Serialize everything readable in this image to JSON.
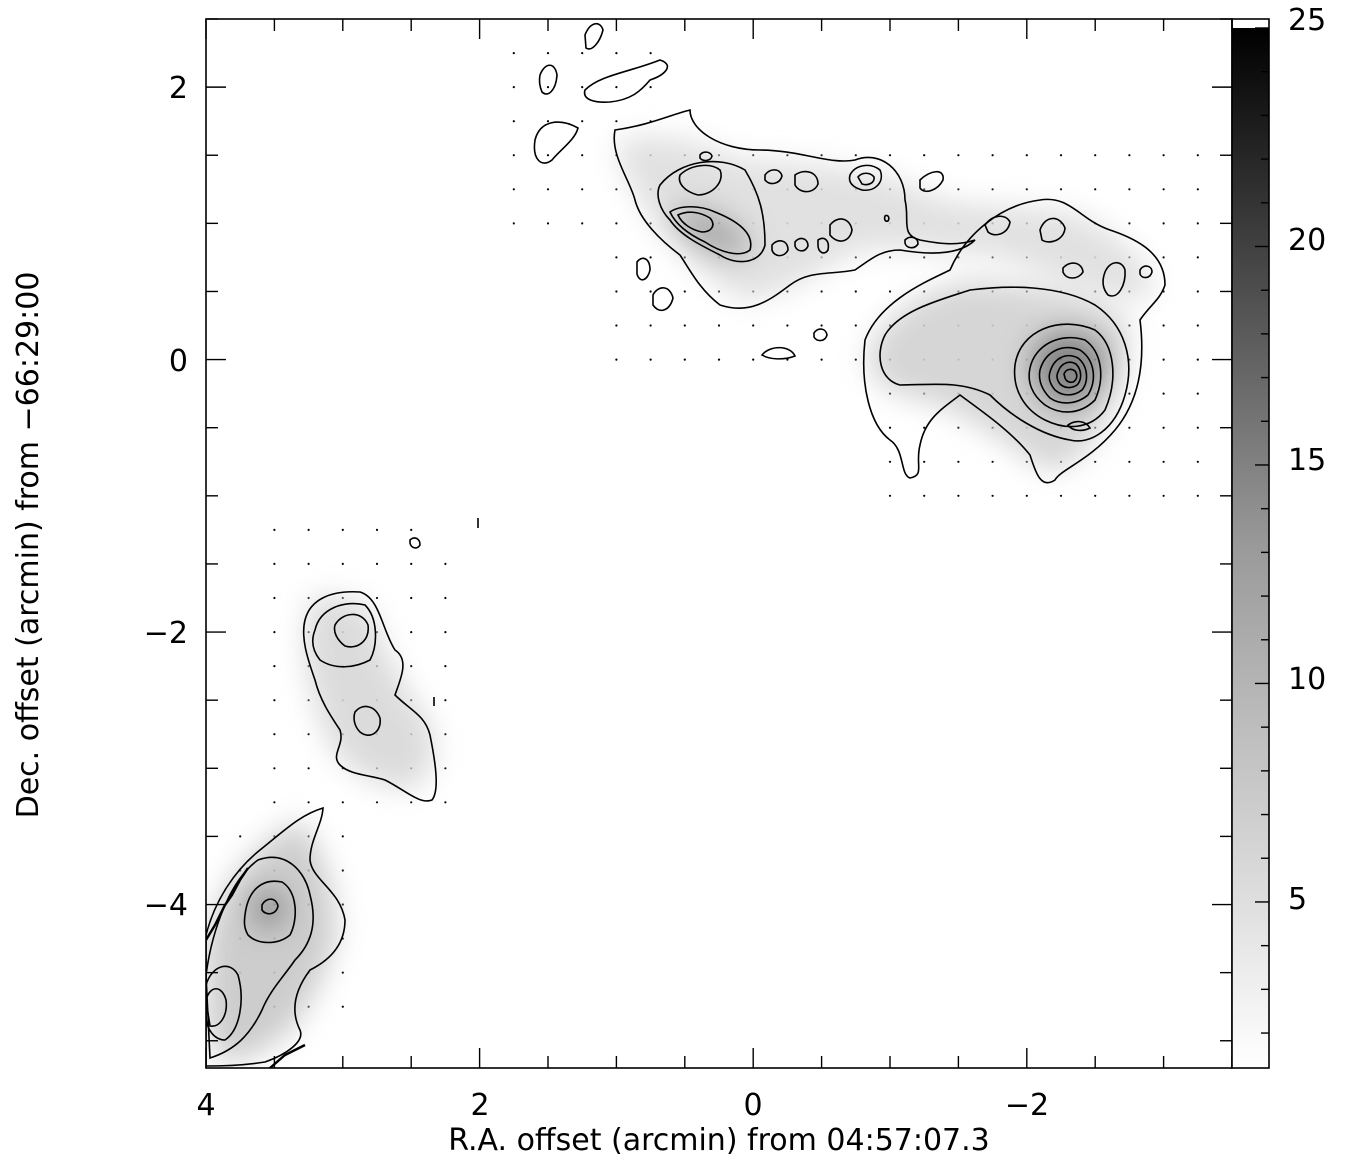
{
  "chart_data": {
    "type": "heatmap",
    "title": "",
    "xlabel": "R.A. offset (arcmin) from 04:57:07.3",
    "ylabel": "Dec. offset (arcmin) from −66:29:00",
    "xlim": [
      4.0,
      -3.5
    ],
    "ylim": [
      -5.2,
      2.5
    ],
    "x_ticks": [
      4,
      2,
      0,
      -2
    ],
    "x_tick_labels": [
      "4",
      "2",
      "0",
      "−2"
    ],
    "y_ticks": [
      2,
      0,
      -2,
      -4
    ],
    "y_tick_labels": [
      "2",
      "0",
      "−2",
      "−4"
    ],
    "colorbar": {
      "min": 1.2,
      "max": 25,
      "ticks": [
        5,
        10,
        15,
        20,
        25
      ],
      "tick_labels": [
        "5",
        "10",
        "15",
        "20",
        "25"
      ],
      "colormap": "grayscale (white low, black high)"
    },
    "contours": "black contour lines at increasing intensity levels",
    "sampling_dots": "small dots mark observed grid positions",
    "emission_peaks": [
      {
        "x": -2.35,
        "y": -0.1,
        "value": 24
      },
      {
        "x": 0.45,
        "y": 1.0,
        "value": 9
      },
      {
        "x": -0.8,
        "y": 1.35,
        "value": 8
      },
      {
        "x": 3.0,
        "y": -2.0,
        "value": 7
      },
      {
        "x": 2.8,
        "y": -2.65,
        "value": 6
      },
      {
        "x": 3.55,
        "y": -4.05,
        "value": 9
      },
      {
        "x": 3.9,
        "y": -4.7,
        "value": 8
      },
      {
        "x": -1.5,
        "y": 0.1,
        "value": 7
      }
    ]
  },
  "colors": {
    "axes": "#000000",
    "background": "#ffffff"
  }
}
